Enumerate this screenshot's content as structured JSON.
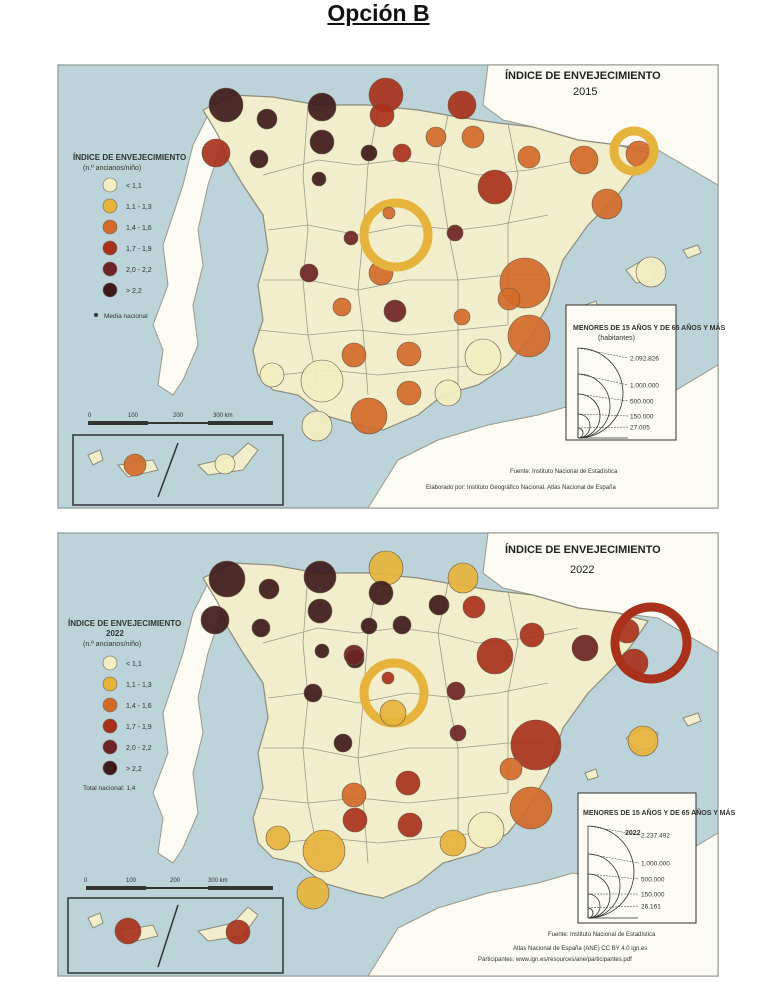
{
  "page": {
    "title": "Opción B"
  },
  "maps": [
    {
      "id": "2015",
      "title": "ÍNDICE DE ENVEJECIMIENTO",
      "year": "2015",
      "legend": {
        "title": "ÍNDICE DE ENVEJECIMIENTO",
        "subtitle": "(n.º ancianos/niño)",
        "classes": [
          {
            "label": "< 1,1",
            "color": "#f3edc1"
          },
          {
            "label": "1,1 - 1,3",
            "color": "#e6b33c"
          },
          {
            "label": "1,4 - 1,6",
            "color": "#d36a2a"
          },
          {
            "label": "1,7 - 1,9",
            "color": "#a9311c"
          },
          {
            "label": "2,0 - 2,2",
            "color": "#6e2424"
          },
          {
            "label": "> 2,2",
            "color": "#3e1a1a"
          }
        ],
        "national": "Media nacional"
      },
      "size_legend": {
        "title": "MENORES DE 15 AÑOS Y DE 65 AÑOS Y MÁS",
        "unit": "(habitantes)",
        "values": [
          "2.092.826",
          "1.000.000",
          "500.000",
          "150.000",
          "27.005"
        ]
      },
      "scale": [
        "0",
        "100",
        "200",
        "300 km"
      ],
      "source": "Fuente: Instituto Nacional de Estadística",
      "credit": "Elaborado por: Instituto Geográfico Nacional. Atlas Nacional de España"
    },
    {
      "id": "2022",
      "title": "ÍNDICE DE ENVEJECIMIENTO",
      "year": "2022",
      "legend": {
        "title": "ÍNDICE DE ENVEJECIMIENTO",
        "year": "2022",
        "subtitle": "(n.º ancianos/niño)",
        "classes": [
          {
            "label": "< 1,1",
            "color": "#f3edc1"
          },
          {
            "label": "1,1 - 1,3",
            "color": "#e6b33c"
          },
          {
            "label": "1,4 - 1,6",
            "color": "#d36a2a"
          },
          {
            "label": "1,7 - 1,9",
            "color": "#a9311c"
          },
          {
            "label": "2,0 - 2,2",
            "color": "#6e2424"
          },
          {
            "label": "> 2,2",
            "color": "#3e1a1a"
          }
        ],
        "national": "Total nacional: 1,4"
      },
      "size_legend": {
        "title": "MENORES DE 15 AÑOS Y DE 65 AÑOS Y MÁS",
        "unit": "2022",
        "values": [
          "2.237.492",
          "1.000.000",
          "500.000",
          "150.000",
          "26.161"
        ]
      },
      "scale": [
        "0",
        "100",
        "200",
        "300 km"
      ],
      "source": "Fuente: Instituto Nacional de Estadística",
      "credit": "Atlas Nacional de España (ANE) CC BY 4.0 ign.es",
      "participants": "Participantes: www.ign.es/resources/ane/participantes.pdf"
    }
  ],
  "colors": {
    "sea": "#bcd3d9",
    "spain": "#f2eecb",
    "neighbor": "#ffffff",
    "border": "#8c8c7c"
  }
}
